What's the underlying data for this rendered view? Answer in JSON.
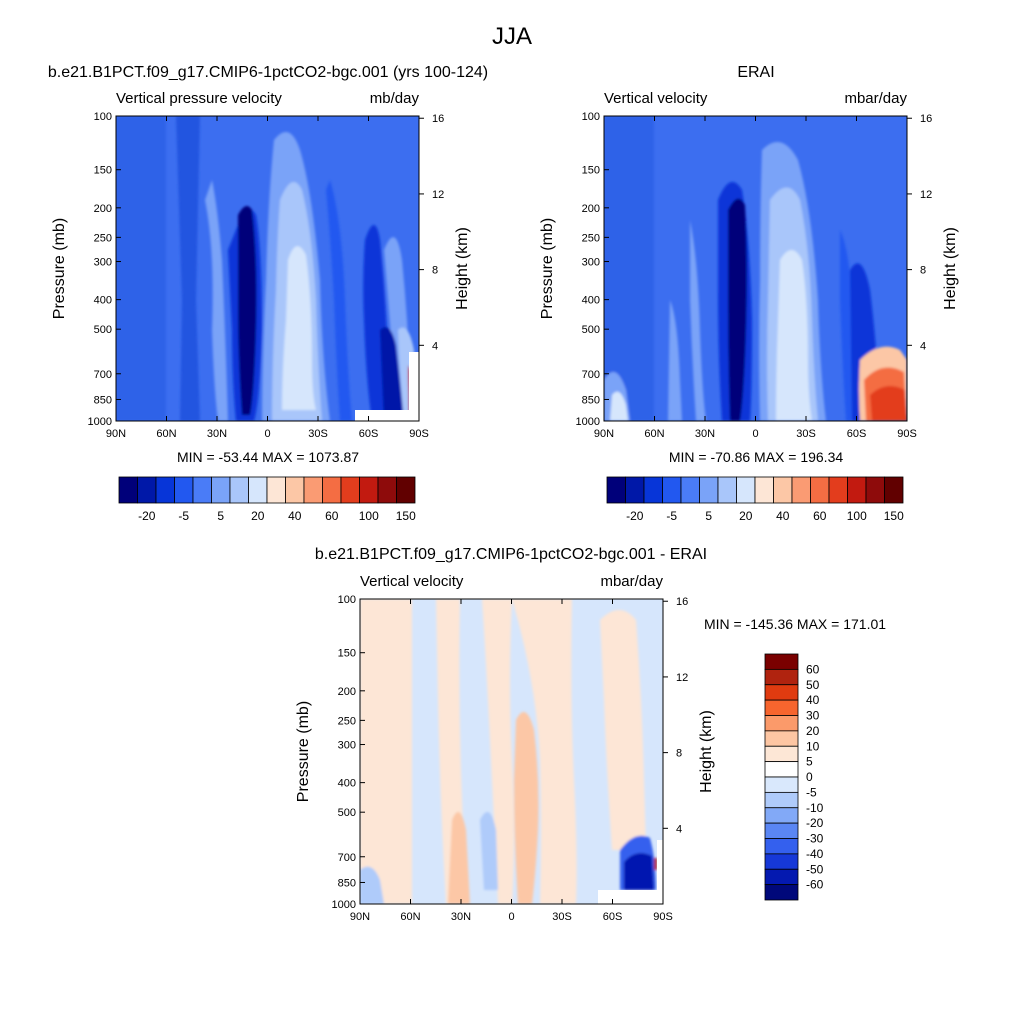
{
  "figure_title": "JJA",
  "colors": {
    "field_base": "#3c6ef0",
    "diff_base": "#cfe2fb",
    "line": "#000000"
  },
  "chart_data": [
    {
      "type": "heatmap",
      "title": "b.e21.B1PCT.f09_g17.CMIP6-1pctCO2-bgc.001 (yrs 100-124)",
      "left_label": "Vertical pressure velocity",
      "right_label": "mb/day",
      "ylabel": "Pressure (mb)",
      "y2label": "Height (km)",
      "x_ticks": [
        "90N",
        "60N",
        "30N",
        "0",
        "30S",
        "60S",
        "90S"
      ],
      "y_ticks": [
        100,
        150,
        200,
        250,
        300,
        400,
        500,
        700,
        850,
        1000
      ],
      "y2_ticks": [
        16,
        12,
        8,
        4
      ],
      "ylim": [
        1000,
        100
      ],
      "stats": "MIN = -53.44  MAX = 1073.87",
      "min": -53.44,
      "max": 1073.87,
      "colorbar_labels": [
        "-20",
        "-5",
        "5",
        "20",
        "40",
        "60",
        "100",
        "150"
      ],
      "colorbar_orientation": "horizontal"
    },
    {
      "type": "heatmap",
      "title": "ERAI",
      "left_label": "Vertical velocity",
      "right_label": "mbar/day",
      "ylabel": "Pressure (mb)",
      "y2label": "Height (km)",
      "x_ticks": [
        "90N",
        "60N",
        "30N",
        "0",
        "30S",
        "60S",
        "90S"
      ],
      "y_ticks": [
        100,
        150,
        200,
        250,
        300,
        400,
        500,
        700,
        850,
        1000
      ],
      "y2_ticks": [
        16,
        12,
        8,
        4
      ],
      "ylim": [
        1000,
        100
      ],
      "stats": "MIN = -70.86  MAX = 196.34",
      "min": -70.86,
      "max": 196.34,
      "colorbar_labels": [
        "-20",
        "-5",
        "5",
        "20",
        "40",
        "60",
        "100",
        "150"
      ],
      "colorbar_orientation": "horizontal"
    },
    {
      "type": "heatmap",
      "title": "b.e21.B1PCT.f09_g17.CMIP6-1pctCO2-bgc.001 - ERAI",
      "left_label": "Vertical velocity",
      "right_label": "mbar/day",
      "ylabel": "Pressure (mb)",
      "y2label": "Height (km)",
      "x_ticks": [
        "90N",
        "60N",
        "30N",
        "0",
        "30S",
        "60S",
        "90S"
      ],
      "y_ticks": [
        100,
        150,
        200,
        250,
        300,
        400,
        500,
        700,
        850,
        1000
      ],
      "y2_ticks": [
        16,
        12,
        8,
        4
      ],
      "ylim": [
        1000,
        100
      ],
      "stats": "MIN = -145.36  MAX = 171.01",
      "min": -145.36,
      "max": 171.01,
      "colorbar_labels": [
        "60",
        "50",
        "40",
        "30",
        "20",
        "10",
        "5",
        "0",
        "-5",
        "-10",
        "-20",
        "-30",
        "-40",
        "-50",
        "-60"
      ],
      "colorbar_orientation": "vertical"
    }
  ],
  "colorbar_main": [
    "#00007a",
    "#0018a8",
    "#0735d8",
    "#2258f0",
    "#4a7cf7",
    "#7aa3f8",
    "#a9c6fa",
    "#d6e6fc",
    "#fde6d6",
    "#fcc7a6",
    "#fa9b73",
    "#f46d43",
    "#e33d1d",
    "#c21a10",
    "#8e0b0b",
    "#610000"
  ],
  "colorbar_diff": [
    "#7a0000",
    "#b0230f",
    "#e03b10",
    "#f7652e",
    "#fb9a6a",
    "#fdc6a3",
    "#fde7d6",
    "#ffffff",
    "#d9e8fc",
    "#afcbfa",
    "#82a9f7",
    "#5a86f4",
    "#3460ee",
    "#1638d8",
    "#0419b0",
    "#00087a"
  ]
}
